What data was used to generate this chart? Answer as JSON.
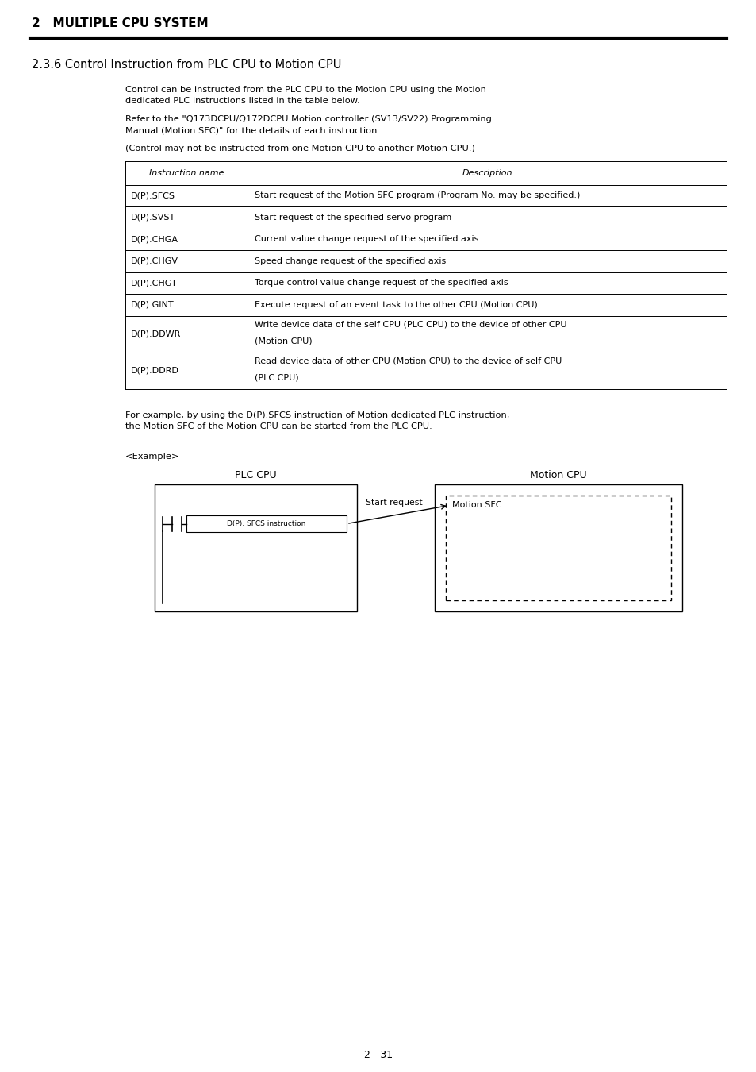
{
  "page_title": "2   MULTIPLE CPU SYSTEM",
  "section_title": "2.3.6 Control Instruction from PLC CPU to Motion CPU",
  "body_text_1": "Control can be instructed from the PLC CPU to the Motion CPU using the Motion\ndedicated PLC instructions listed in the table below.",
  "body_text_2": "Refer to the \"Q173DCPU/Q172DCPU Motion controller (SV13/SV22) Programming\nManual (Motion SFC)\" for the details of each instruction.",
  "body_text_3": "(Control may not be instructed from one Motion CPU to another Motion CPU.)",
  "table_headers": [
    "Instruction name",
    "Description"
  ],
  "table_rows": [
    [
      "D(P).SFCS",
      "Start request of the Motion SFC program (Program No. may be specified.)"
    ],
    [
      "D(P).SVST",
      "Start request of the specified servo program"
    ],
    [
      "D(P).CHGA",
      "Current value change request of the specified axis"
    ],
    [
      "D(P).CHGV",
      "Speed change request of the specified axis"
    ],
    [
      "D(P).CHGT",
      "Torque control value change request of the specified axis"
    ],
    [
      "D(P).GINT",
      "Execute request of an event task to the other CPU (Motion CPU)"
    ],
    [
      "D(P).DDWR",
      "Write device data of the self CPU (PLC CPU) to the device of other CPU\n(Motion CPU)"
    ],
    [
      "D(P).DDRD",
      "Read device data of other CPU (Motion CPU) to the device of self CPU\n(PLC CPU)"
    ]
  ],
  "example_text_1": "For example, by using the D(P).SFCS instruction of Motion dedicated PLC instruction,\nthe Motion SFC of the Motion CPU can be started from the PLC CPU.",
  "example_label": "<Example>",
  "plc_cpu_label": "PLC CPU",
  "motion_cpu_label": "Motion CPU",
  "start_request_label": "Start request",
  "motion_sfc_label": "Motion SFC",
  "instruction_label": "D(P). SFCS instruction",
  "page_number": "2 - 31",
  "bg_color": "#ffffff",
  "text_color": "#000000"
}
